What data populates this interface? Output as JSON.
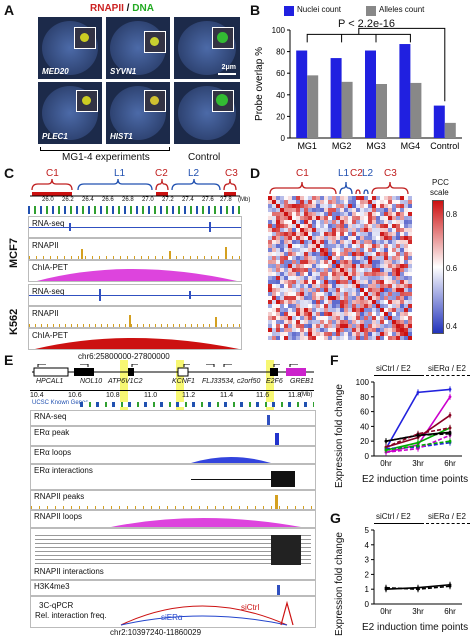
{
  "panels": {
    "A": {
      "label": "A",
      "title_rnapii": "RNAPII",
      "title_sep": " / ",
      "title_dna": "DNA",
      "genes": [
        "MED20",
        "SYVN1",
        "PLEC1",
        "HIST1"
      ],
      "scale_bar": "2μm",
      "caption_mg": "MG1-4 experiments",
      "caption_control": "Control",
      "colors": {
        "rnapii": "#cc2222",
        "dna": "#22aa22"
      }
    },
    "B": {
      "label": "B",
      "legend_nuclei": "Nuclei count",
      "legend_alleles": "Alleles count",
      "pvalue": "P < 2.2e-16",
      "ylabel": "Probe overlap %"
    },
    "C": {
      "label": "C",
      "domains": [
        "C1",
        "L1",
        "C2",
        "L2",
        "C3"
      ],
      "ticks": [
        "26.0",
        "26.2",
        "26.4",
        "26.6",
        "26.8",
        "27.0",
        "27.2",
        "27.4",
        "27.6",
        "27.8"
      ],
      "unit": "(Mb)",
      "cell_mcf7": "MCF7",
      "cell_k562": "K562",
      "tracks": [
        "RNA-seq",
        "RNAPII",
        "ChIA-PET"
      ],
      "coord": "chr6:25800000-27800000"
    },
    "D": {
      "label": "D",
      "domains": [
        "C1",
        "L1",
        "C2",
        "L2",
        "C3"
      ],
      "pcc_title": "PCC",
      "pcc_sub": "scale",
      "scale_ticks": [
        "0.8",
        "0.6",
        "0.4"
      ]
    },
    "E": {
      "label": "E",
      "genes": [
        "HPCAL1",
        "NOL10",
        "ATP6V1C2",
        "KCNF1",
        "FLJ33534, c2orf50",
        "E2F6",
        "GREB1"
      ],
      "ticks": [
        "10.4",
        "10.6",
        "10.8",
        "11.0",
        "11.2",
        "11.4",
        "11.6",
        "11.8"
      ],
      "unit": "(Mb)",
      "ucsc": "UCSC Known Genes",
      "tracks": [
        "RNA-seq",
        "ERα peak",
        "ERα loops",
        "ERα interactions",
        "RNAPII peaks",
        "RNAPII loops",
        "RNAPII interactions",
        "H3K4me3"
      ],
      "qpcr_line1": "3C-qPCR",
      "qpcr_line2": "Rel. interaction freq.",
      "sictrl": "siCtrl",
      "siera": "siERα",
      "coord": "chr2:10397240-11860029"
    },
    "F": {
      "label": "F",
      "legend_a": "siCtrl / E2",
      "legend_b": "siERα / E2",
      "ylabel": "Expression fold change",
      "xlabel": "E2 induction time points"
    },
    "G": {
      "label": "G",
      "legend_a": "siCtrl / E2",
      "legend_b": "siERα / E2",
      "ylabel": "Expression fold change",
      "xlabel": "E2 induction time points"
    }
  },
  "chart_data": [
    {
      "type": "bar",
      "panel": "B",
      "categories": [
        "MG1",
        "MG2",
        "MG3",
        "MG4",
        "Control"
      ],
      "series": [
        {
          "name": "Nuclei count",
          "values": [
            81,
            74,
            81,
            87,
            30
          ],
          "color": "#2020e0"
        },
        {
          "name": "Alleles count",
          "values": [
            58,
            52,
            50,
            51,
            14
          ],
          "color": "#888888"
        }
      ],
      "ylabel": "Probe overlap %",
      "ylim": [
        0,
        100
      ],
      "yticks": [
        0,
        20,
        40,
        60,
        80,
        100
      ]
    },
    {
      "type": "line",
      "panel": "F",
      "x": [
        "0hr",
        "3hr",
        "6hr"
      ],
      "ylim": [
        0,
        100
      ],
      "yticks": [
        0,
        20,
        40,
        60,
        80,
        100
      ],
      "series": [
        {
          "color": "#2222dd",
          "dash": false,
          "values": [
            10,
            86,
            90
          ]
        },
        {
          "color": "#cc00cc",
          "dash": false,
          "values": [
            5,
            15,
            80
          ]
        },
        {
          "color": "#880022",
          "dash": false,
          "values": [
            12,
            25,
            55
          ]
        },
        {
          "color": "#00aa00",
          "dash": false,
          "values": [
            8,
            18,
            38
          ]
        },
        {
          "color": "#000000",
          "dash": false,
          "values": [
            20,
            28,
            32
          ]
        },
        {
          "color": "#2222dd",
          "dash": true,
          "values": [
            10,
            12,
            18
          ]
        },
        {
          "color": "#cc00cc",
          "dash": true,
          "values": [
            5,
            10,
            28
          ]
        },
        {
          "color": "#880022",
          "dash": true,
          "values": [
            12,
            30,
            38
          ]
        },
        {
          "color": "#00aa00",
          "dash": true,
          "values": [
            8,
            14,
            20
          ]
        },
        {
          "color": "#000000",
          "dash": true,
          "values": [
            20,
            28,
            30
          ]
        }
      ]
    },
    {
      "type": "line",
      "panel": "G",
      "x": [
        "0hr",
        "3hr",
        "6hr"
      ],
      "ylim": [
        0,
        5
      ],
      "yticks": [
        0,
        1,
        2,
        3,
        4,
        5
      ],
      "series": [
        {
          "color": "#000000",
          "dash": false,
          "values": [
            1.0,
            1.1,
            1.3
          ]
        },
        {
          "color": "#000000",
          "dash": true,
          "values": [
            1.1,
            1.0,
            1.2
          ]
        }
      ]
    }
  ]
}
